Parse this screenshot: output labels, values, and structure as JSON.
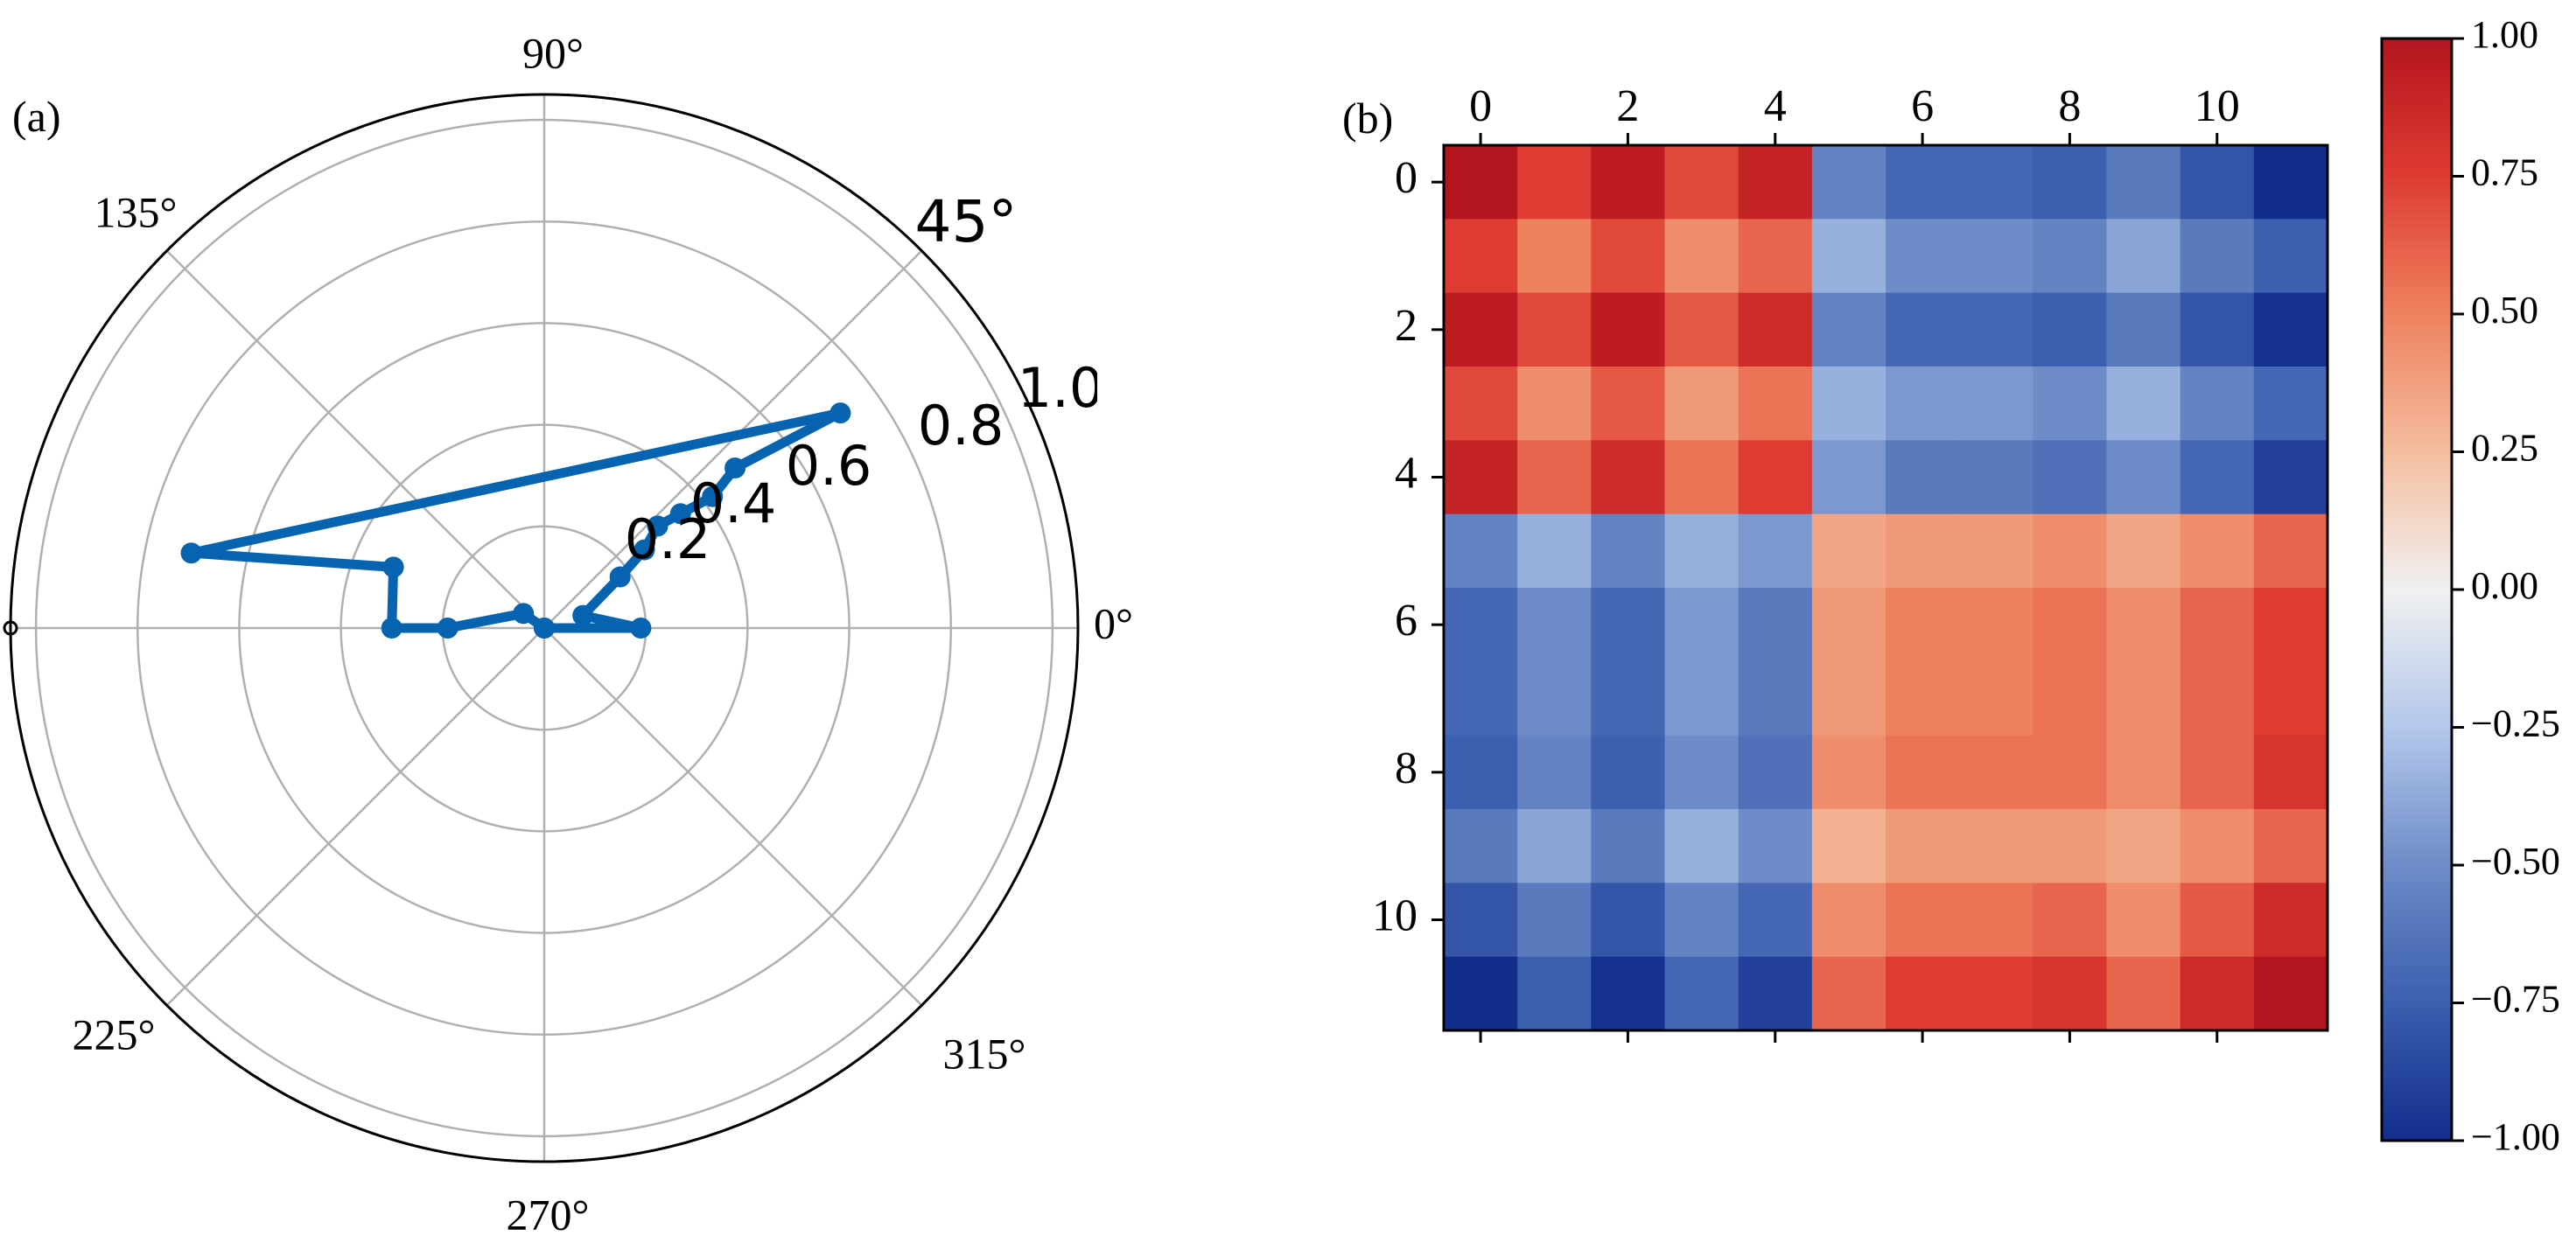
{
  "panel_labels": {
    "a": "(a)",
    "b": "(b)"
  },
  "chart_data": [
    {
      "type": "line",
      "subtype": "polar",
      "title": "",
      "theta_labels": [
        "0°",
        "45°",
        "90°",
        "135°",
        "225°",
        "270°",
        "315°"
      ],
      "radial_labels": [
        "0.2",
        "0.4",
        "0.6",
        "0.8",
        "1.0"
      ],
      "radial_ticks": [
        0.2,
        0.4,
        0.6,
        0.8,
        1.0
      ],
      "rlim": [
        0,
        1.05
      ],
      "grid": true,
      "color": "#0563b0",
      "theta_deg": [
        0,
        0,
        18,
        34,
        38,
        42,
        40,
        38,
        40,
        36,
        168,
        158,
        180,
        180,
        145,
        0
      ],
      "r": [
        0,
        0.19,
        0.08,
        0.18,
        0.25,
        0.3,
        0.35,
        0.42,
        0.49,
        0.72,
        0.71,
        0.32,
        0.3,
        0.19,
        0.05,
        0
      ]
    },
    {
      "type": "heatmap",
      "title": "",
      "xlabel": "",
      "ylabel": "",
      "x_tick_labels": [
        "0",
        "2",
        "4",
        "6",
        "8",
        "10"
      ],
      "y_tick_labels": [
        "0",
        "2",
        "4",
        "6",
        "8",
        "10"
      ],
      "colorbar_labels": [
        "1.00",
        "0.75",
        "0.50",
        "0.25",
        "0.00",
        "−0.25",
        "−0.50",
        "−0.75",
        "−1.00"
      ],
      "vmin": -1,
      "vmax": 1,
      "colormap": "RdBu_r",
      "rows": 12,
      "cols": 12,
      "matrix": [
        [
          1.0,
          0.75,
          0.95,
          0.7,
          0.9,
          -0.55,
          -0.7,
          -0.7,
          -0.75,
          -0.6,
          -0.8,
          -1.0
        ],
        [
          0.75,
          0.5,
          0.7,
          0.45,
          0.6,
          -0.35,
          -0.5,
          -0.5,
          -0.55,
          -0.4,
          -0.6,
          -0.75
        ],
        [
          0.95,
          0.7,
          0.95,
          0.65,
          0.85,
          -0.55,
          -0.7,
          -0.7,
          -0.75,
          -0.6,
          -0.8,
          -0.98
        ],
        [
          0.7,
          0.45,
          0.65,
          0.4,
          0.55,
          -0.35,
          -0.45,
          -0.45,
          -0.5,
          -0.35,
          -0.55,
          -0.7
        ],
        [
          0.9,
          0.6,
          0.85,
          0.55,
          0.75,
          -0.45,
          -0.6,
          -0.6,
          -0.65,
          -0.5,
          -0.7,
          -0.9
        ],
        [
          -0.55,
          -0.35,
          -0.55,
          -0.35,
          -0.45,
          0.35,
          0.4,
          0.4,
          0.45,
          0.35,
          0.45,
          0.6
        ],
        [
          -0.7,
          -0.5,
          -0.7,
          -0.45,
          -0.6,
          0.4,
          0.5,
          0.5,
          0.55,
          0.45,
          0.6,
          0.75
        ],
        [
          -0.7,
          -0.5,
          -0.7,
          -0.45,
          -0.6,
          0.4,
          0.5,
          0.5,
          0.55,
          0.45,
          0.6,
          0.75
        ],
        [
          -0.75,
          -0.55,
          -0.75,
          -0.5,
          -0.65,
          0.45,
          0.55,
          0.55,
          0.55,
          0.45,
          0.6,
          0.8
        ],
        [
          -0.6,
          -0.4,
          -0.6,
          -0.35,
          -0.5,
          0.3,
          0.4,
          0.4,
          0.4,
          0.35,
          0.45,
          0.6
        ],
        [
          -0.8,
          -0.6,
          -0.8,
          -0.55,
          -0.7,
          0.45,
          0.55,
          0.55,
          0.6,
          0.45,
          0.65,
          0.85
        ],
        [
          -1.0,
          -0.75,
          -0.98,
          -0.7,
          -0.9,
          0.6,
          0.75,
          0.75,
          0.8,
          0.6,
          0.85,
          1.0
        ]
      ]
    }
  ]
}
